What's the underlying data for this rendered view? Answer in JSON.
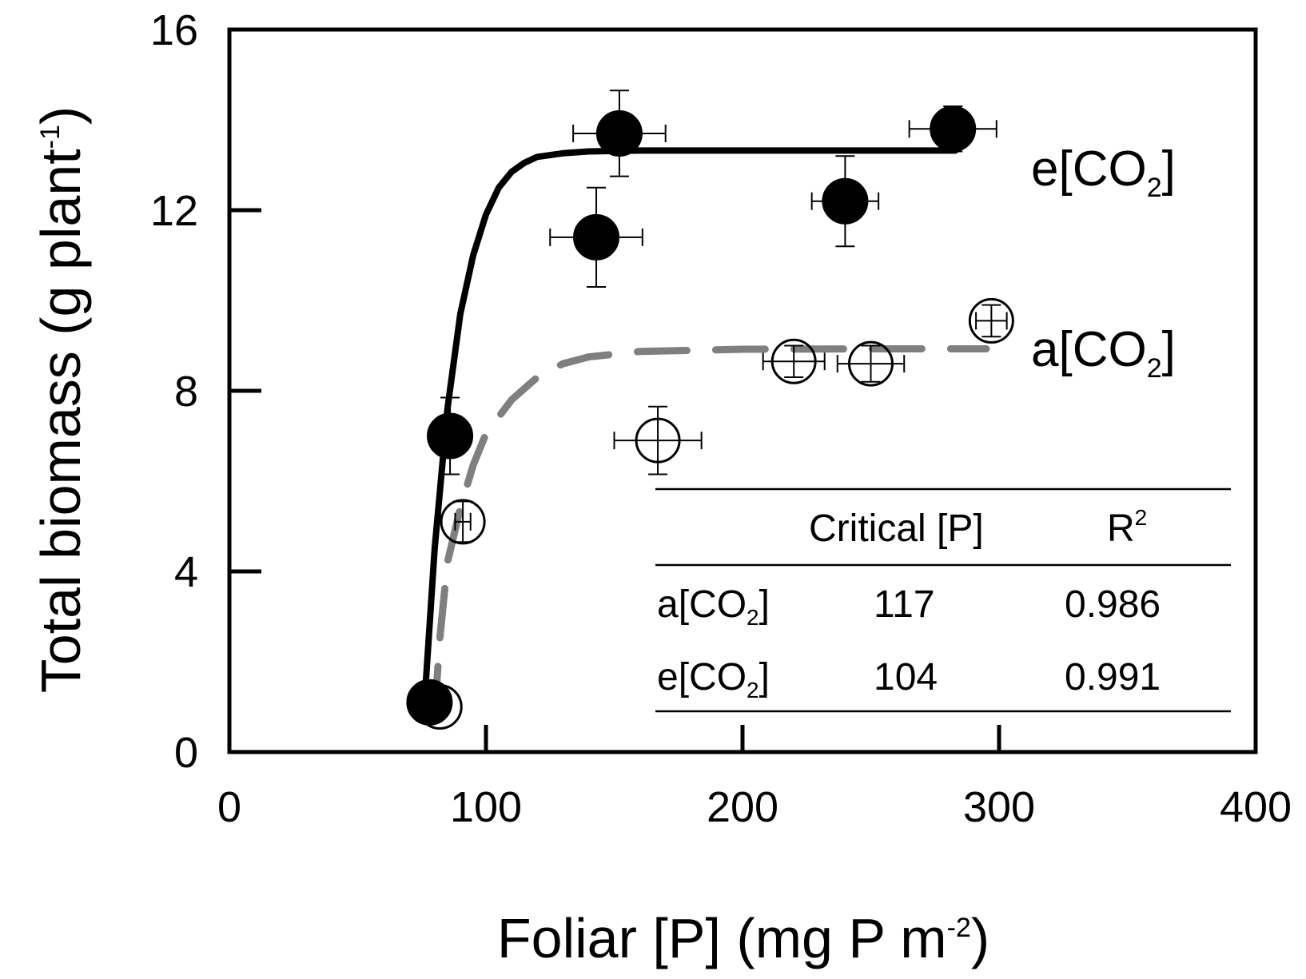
{
  "chart_data": {
    "type": "scatter",
    "title": "",
    "xlabel": {
      "main": "Foliar [P] (mg P m",
      "sup": "-2",
      "end": ")"
    },
    "ylabel": {
      "main": "Total biomass (g plant",
      "sup": "-1",
      "end": ")"
    },
    "xlim": [
      0,
      400
    ],
    "ylim": [
      0,
      16
    ],
    "xticks": [
      0,
      100,
      200,
      300,
      400
    ],
    "yticks": [
      0,
      4,
      8,
      12,
      16
    ],
    "xtick_labels": [
      "0",
      "100",
      "200",
      "300",
      "400"
    ],
    "ytick_labels": [
      "0",
      "4",
      "8",
      "12",
      "16"
    ],
    "grid": false,
    "series": [
      {
        "id": "e",
        "label_prefix": "e[CO",
        "label_sub": "2",
        "label_suffix": "]",
        "marker": "filled-circle",
        "color": "#000000",
        "line_style": "solid",
        "points": [
          {
            "x": 78,
            "y": 1.1,
            "xerr": 3,
            "yerr": 0.15
          },
          {
            "x": 86,
            "y": 7.0,
            "xerr": 3,
            "yerr": 0.85
          },
          {
            "x": 143,
            "y": 11.4,
            "xerr": 18,
            "yerr": 1.1
          },
          {
            "x": 152,
            "y": 13.7,
            "xerr": 18,
            "yerr": 0.95
          },
          {
            "x": 240,
            "y": 12.2,
            "xerr": 13,
            "yerr": 1.0
          },
          {
            "x": 282,
            "y": 13.8,
            "xerr": 17,
            "yerr": 0.5
          }
        ],
        "fit": [
          [
            76.5,
            1.5
          ],
          [
            80,
            4.5
          ],
          [
            85,
            7.6
          ],
          [
            90,
            9.7
          ],
          [
            95,
            11.0
          ],
          [
            100,
            11.9
          ],
          [
            105,
            12.5
          ],
          [
            110,
            12.85
          ],
          [
            115,
            13.05
          ],
          [
            120,
            13.18
          ],
          [
            130,
            13.26
          ],
          [
            140,
            13.3
          ],
          [
            160,
            13.32
          ],
          [
            200,
            13.32
          ],
          [
            283,
            13.32
          ]
        ]
      },
      {
        "id": "a",
        "label_prefix": "a[CO",
        "label_sub": "2",
        "label_suffix": "]",
        "marker": "open-circle",
        "color": "#7f7f7f",
        "line_style": "dashed",
        "points": [
          {
            "x": 82,
            "y": 1.0,
            "xerr": 3,
            "yerr": 0.15
          },
          {
            "x": 91,
            "y": 5.1,
            "xerr": 3,
            "yerr": 0.45
          },
          {
            "x": 167,
            "y": 6.9,
            "xerr": 17,
            "yerr": 0.75
          },
          {
            "x": 220,
            "y": 8.65,
            "xerr": 12,
            "yerr": 0.35
          },
          {
            "x": 250,
            "y": 8.6,
            "xerr": 13,
            "yerr": 0.4
          },
          {
            "x": 297,
            "y": 9.55,
            "xerr": 6,
            "yerr": 0.35
          }
        ],
        "fit": [
          [
            80,
            0.8
          ],
          [
            82,
            2.5
          ],
          [
            85,
            4.2
          ],
          [
            90,
            5.4
          ],
          [
            95,
            6.35
          ],
          [
            100,
            7.05
          ],
          [
            110,
            7.8
          ],
          [
            120,
            8.3
          ],
          [
            130,
            8.6
          ],
          [
            140,
            8.75
          ],
          [
            160,
            8.87
          ],
          [
            200,
            8.92
          ],
          [
            250,
            8.93
          ],
          [
            295,
            8.93
          ]
        ]
      }
    ],
    "table": {
      "headers": [
        "",
        "Critical [P]",
        "R"
      ],
      "r_sup": "2",
      "rows": [
        {
          "label_prefix": "a[CO",
          "label_sub": "2",
          "label_suffix": "]",
          "critical_p": "117",
          "r2": "0.986"
        },
        {
          "label_prefix": "e[CO",
          "label_sub": "2",
          "label_suffix": "]",
          "critical_p": "104",
          "r2": "0.991"
        }
      ]
    }
  }
}
